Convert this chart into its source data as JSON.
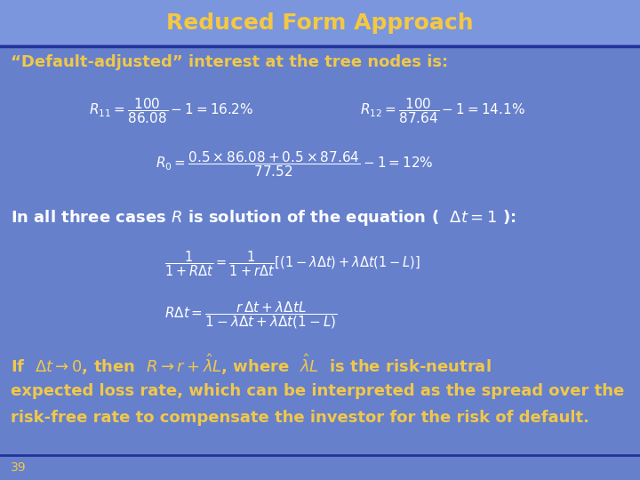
{
  "title": "Reduced Form Approach",
  "title_color": "#F5C842",
  "title_fontsize": 18,
  "bg_color": "#6680CC",
  "separator_color": "#223399",
  "text_color_white": "#FFFFFF",
  "text_color_yellow": "#F0C84A",
  "slide_number": "39",
  "line1": "“Default-adjusted” interest at the tree nodes is:",
  "eq1_left": "$R_{11} =\\dfrac{100}{86.08}-1 =16.2\\%$",
  "eq1_right": "$R_{12} =\\dfrac{100}{87.64}-1 =14.1\\%$",
  "eq2": "$R_0 =\\dfrac{0.5\\times86.08+0.5\\times87.64}{77.52}-1 =12\\%$",
  "line2": "In all three cases $R$ is solution of the equation (  $\\Delta t =1$ ):",
  "eq3": "$\\dfrac{1}{1+R\\Delta t}=\\dfrac{1}{1+r\\Delta t}\\left[(1-\\lambda\\Delta t)+\\lambda\\Delta t(1-L)\\right]$",
  "eq4": "$R\\Delta t =\\dfrac{r\\,\\Delta t+\\lambda\\Delta tL}{1-\\lambda\\Delta t+\\lambda\\Delta t(1-L)}$",
  "line3": "If  $\\Delta t\\rightarrow 0$, then  $R\\rightarrow r+\\hat{\\lambda}L$, where  $\\hat{\\lambda}L$  is the risk-neutral",
  "line4": "expected loss rate, which can be interpreted as the spread over the",
  "line5": "risk-free rate to compensate the investor for the risk of default."
}
